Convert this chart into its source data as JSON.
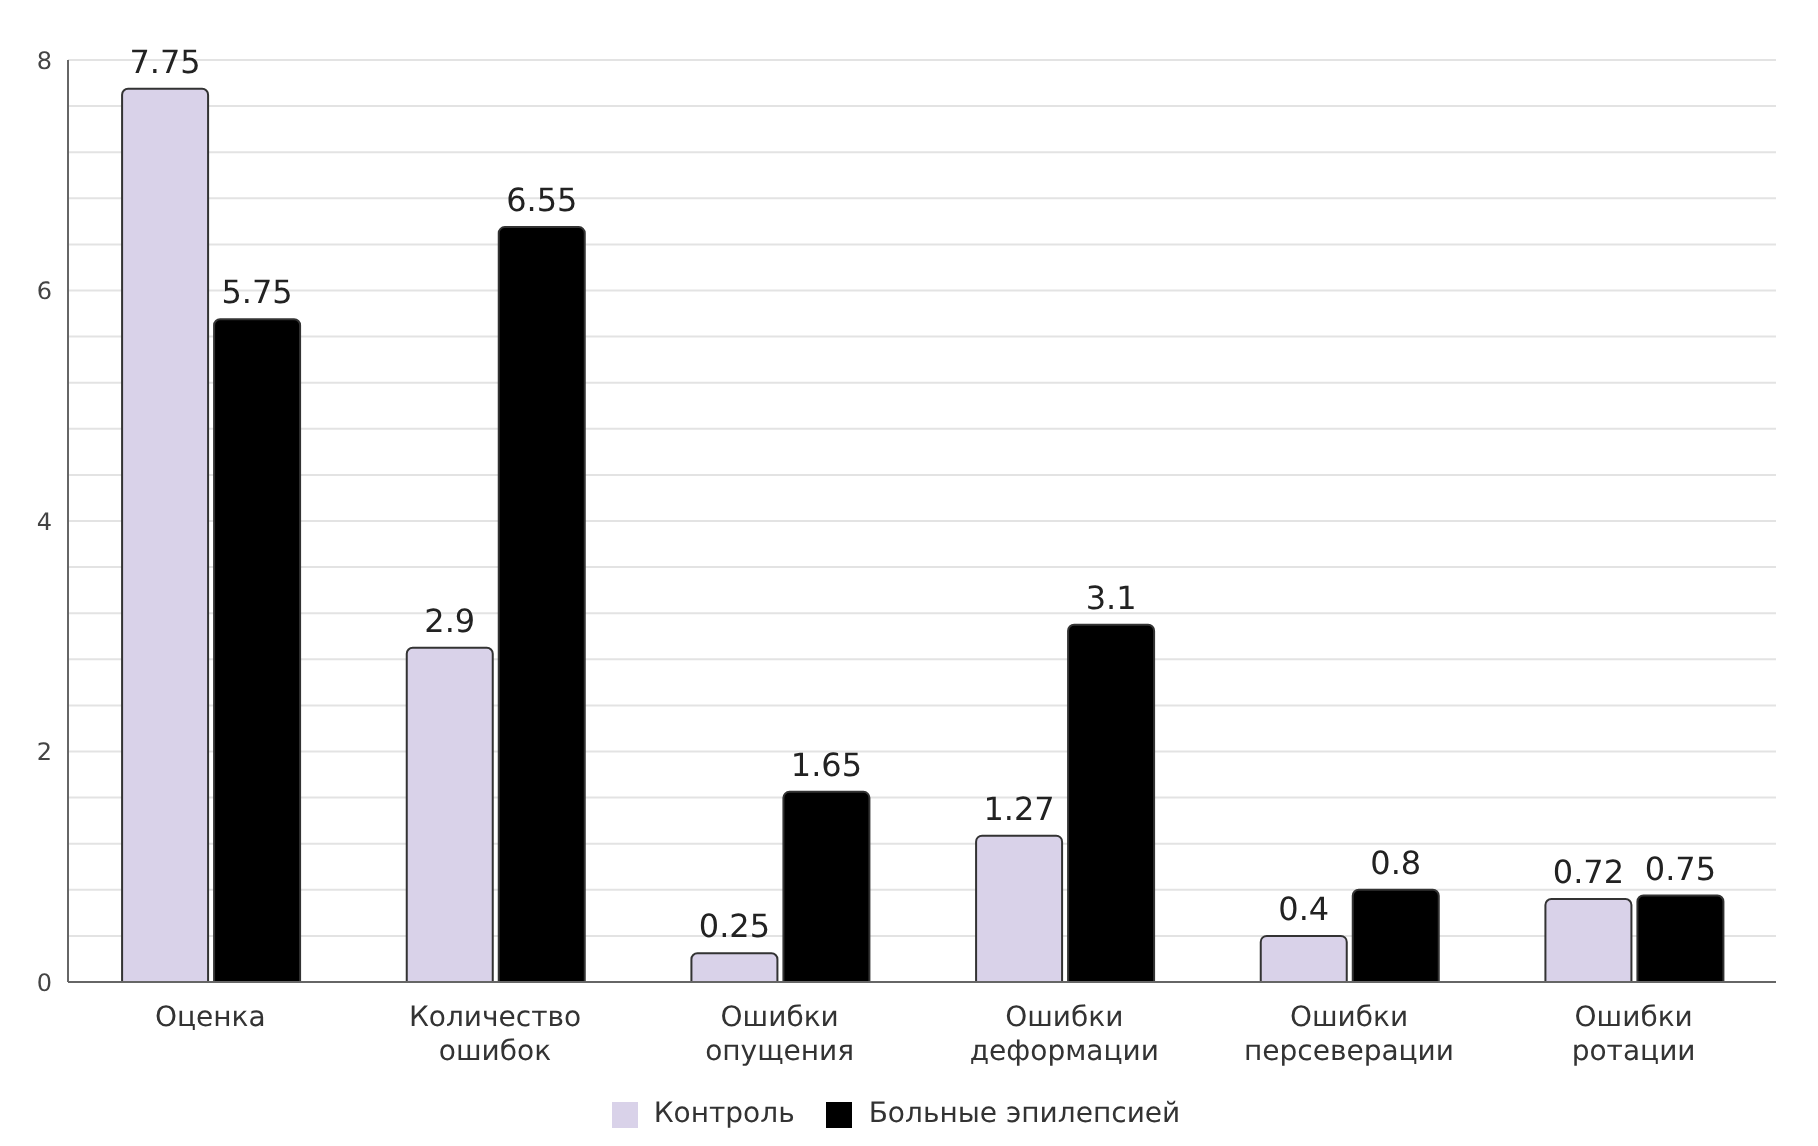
{
  "chart_data": {
    "type": "bar",
    "categories": [
      "Оценка",
      "Количество ошибок",
      "Ошибки опущения",
      "Ошибки деформации",
      "Ошибки персеверации",
      "Ошибки ротации"
    ],
    "series": [
      {
        "name": "Контроль",
        "color": "#d9d2e9",
        "values": [
          7.75,
          2.9,
          0.25,
          1.27,
          0.4,
          0.72
        ]
      },
      {
        "name": "Больные эпилепсией",
        "color": "#000000",
        "values": [
          5.75,
          6.55,
          1.65,
          3.1,
          0.8,
          0.75
        ]
      }
    ],
    "ylim": [
      0,
      8
    ],
    "yticks": [
      0,
      {
        "value": 0.4,
        "label": null
      },
      {
        "value": 0.8,
        "label": null
      },
      {
        "value": 1.2,
        "label": null
      },
      {
        "value": 1.6,
        "label": null
      },
      2,
      {
        "value": 2.4,
        "label": null
      },
      {
        "value": 2.8,
        "label": null
      },
      {
        "value": 3.2,
        "label": null
      },
      {
        "value": 3.6,
        "label": null
      },
      4,
      {
        "value": 4.4,
        "label": null
      },
      {
        "value": 4.8,
        "label": null
      },
      {
        "value": 5.2,
        "label": null
      },
      {
        "value": 5.6,
        "label": null
      },
      6,
      {
        "value": 6.4,
        "label": null
      },
      {
        "value": 6.8,
        "label": null
      },
      {
        "value": 7.2,
        "label": null
      },
      {
        "value": 7.6,
        "label": null
      },
      8
    ],
    "grid": "y",
    "legend": "bottom",
    "data_labels": true
  }
}
